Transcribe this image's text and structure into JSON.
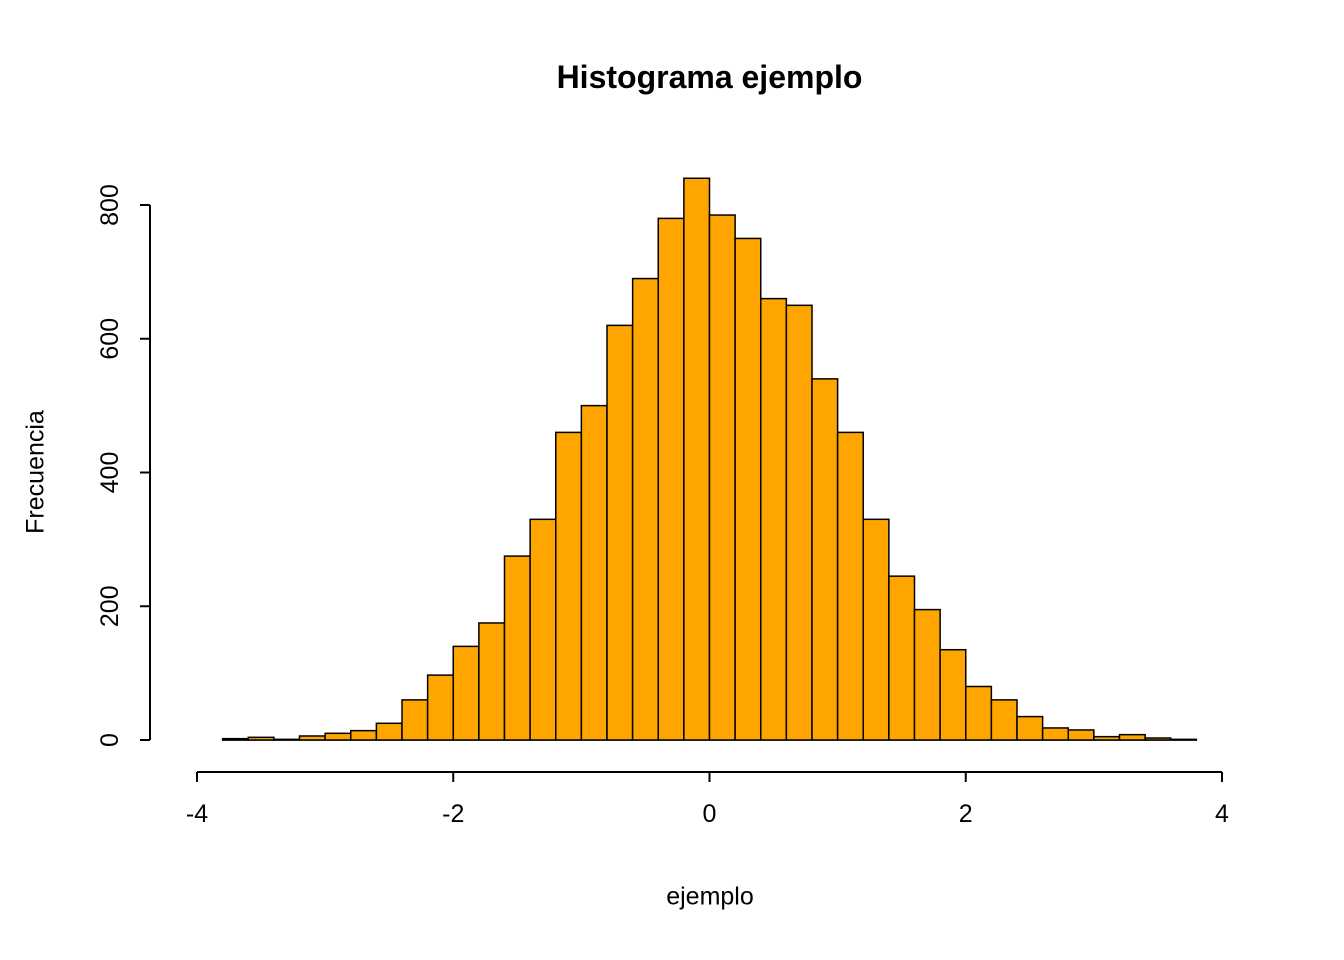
{
  "page": {
    "background_color": "#FFFFFF"
  },
  "chart_data": {
    "type": "bar",
    "subtype": "histogram",
    "title": "Histograma ejemplo",
    "xlabel": "ejemplo",
    "ylabel": "Frecuencia",
    "bin_start": -3.8,
    "bin_width": 0.2,
    "counts": [
      2,
      4,
      1,
      6,
      10,
      14,
      25,
      60,
      97,
      140,
      175,
      275,
      330,
      460,
      500,
      620,
      690,
      780,
      840,
      785,
      750,
      660,
      650,
      540,
      460,
      330,
      245,
      195,
      135,
      80,
      60,
      35,
      18,
      15,
      5,
      8,
      3,
      1
    ],
    "xlim": [
      -4,
      4
    ],
    "ylim": [
      0,
      800
    ],
    "x_ticks": [
      -4,
      -2,
      0,
      2,
      4
    ],
    "y_ticks": [
      0,
      200,
      400,
      600,
      800
    ],
    "grid": false,
    "legend_position": "none",
    "bar_color": "#FFA500",
    "bar_border_color": "#000000",
    "axis_color": "#000000",
    "text_color": "#000000"
  }
}
